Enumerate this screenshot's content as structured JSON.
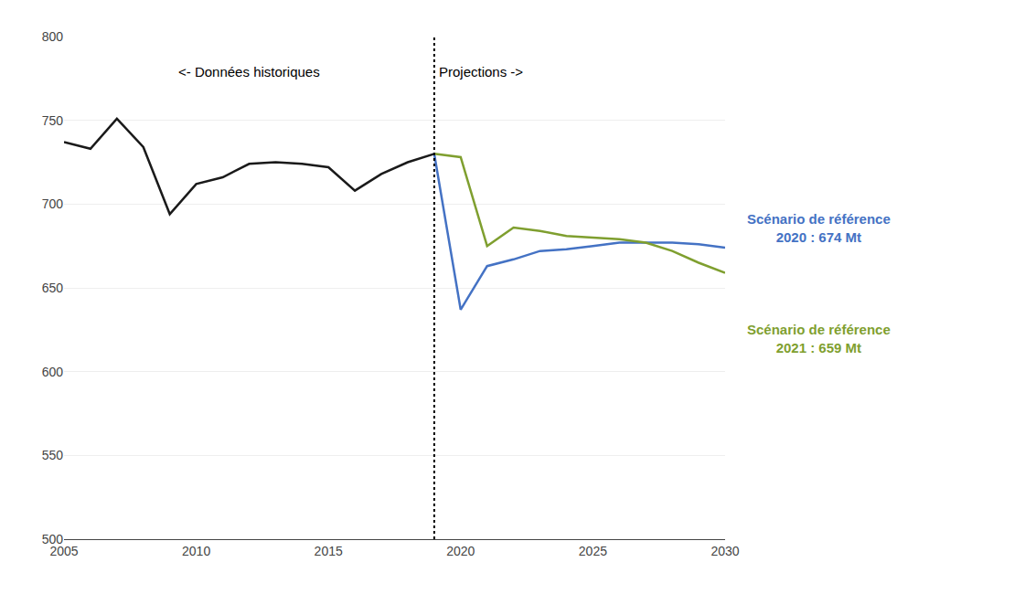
{
  "chart_data": {
    "type": "line",
    "series": [
      {
        "x": [
          2005,
          2006,
          2007,
          2008,
          2009,
          2010,
          2011,
          2012,
          2013,
          2014,
          2015,
          2016,
          2017,
          2018,
          2019
        ],
        "values": [
          737,
          733,
          751,
          734,
          694,
          712,
          716,
          724,
          725,
          724,
          722,
          708,
          718,
          725,
          730
        ],
        "color": "#1a1a1a"
      },
      {
        "name": "Scénario de référence\n2020 : 674 Mt",
        "x": [
          2019,
          2020,
          2021,
          2022,
          2023,
          2024,
          2025,
          2026,
          2027,
          2028,
          2029,
          2030
        ],
        "values": [
          730,
          637,
          663,
          667,
          672,
          673,
          675,
          677,
          677,
          677,
          676,
          674
        ],
        "color": "#4472C4"
      },
      {
        "name": "Scénario de référence\n2021 : 659 Mt",
        "x": [
          2019,
          2020,
          2021,
          2022,
          2023,
          2024,
          2025,
          2026,
          2027,
          2028,
          2029,
          2030
        ],
        "values": [
          730,
          728,
          675,
          686,
          684,
          681,
          680,
          679,
          677,
          672,
          665,
          659
        ],
        "color": "#7F9F2F"
      }
    ],
    "vline": 2019,
    "annotations": [
      {
        "text": "<- Données historiques"
      },
      {
        "text": "Projections ->"
      }
    ],
    "xlim": [
      2005,
      2030
    ],
    "xticks": [
      2005,
      2010,
      2015,
      2020,
      2025,
      2030
    ],
    "ylim": [
      500,
      800
    ],
    "yticks": [
      500,
      550,
      600,
      650,
      700,
      750,
      800
    ],
    "grid": "y"
  }
}
